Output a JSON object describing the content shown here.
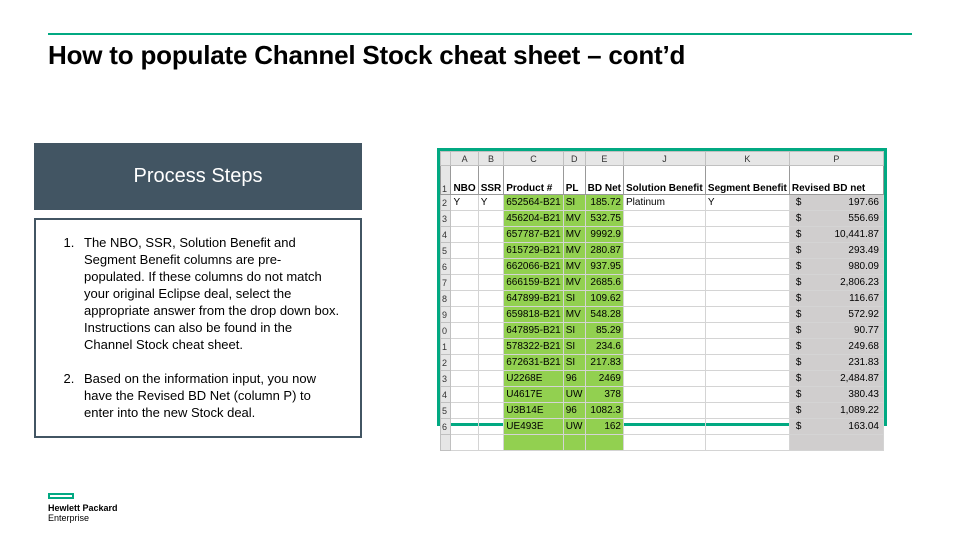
{
  "slide": {
    "title": "How to populate Channel Stock cheat sheet – cont’d",
    "accent_color": "#01a982",
    "panel_color": "#425563"
  },
  "process": {
    "header": "Process Steps",
    "steps": [
      "The NBO, SSR, Solution Benefit and Segment Benefit columns are pre-populated.  If these columns do not match your original Eclipse deal, select the appropriate answer from the drop down box.  Instructions can also be found in the Channel Stock cheat sheet.",
      "Based on the information input, you now have the Revised BD Net (column P) to enter into the new Stock deal."
    ]
  },
  "sheet": {
    "column_letters": [
      "A",
      "B",
      "C",
      "D",
      "E",
      "J",
      "K",
      "P"
    ],
    "headers": [
      "NBO",
      "SSR",
      "Product #",
      "PL",
      "BD Net",
      "Solution Benefit",
      "Segment Benefit",
      "Revised BD net"
    ],
    "row_numbers": [
      "1",
      "2",
      "3",
      "4",
      "5",
      "6",
      "7",
      "8",
      "9",
      "0",
      "1",
      "2",
      "3",
      "4",
      "5",
      "6",
      ""
    ],
    "currency_symbol": "$",
    "rows": [
      {
        "nbo": "Y",
        "ssr": "Y",
        "product": "652564-B21",
        "pl": "SI",
        "bdnet": "185.72",
        "solution": "Platinum",
        "segment": "Y",
        "revised": "197.66"
      },
      {
        "nbo": "",
        "ssr": "",
        "product": "456204-B21",
        "pl": "MV",
        "bdnet": "532.75",
        "solution": "",
        "segment": "",
        "revised": "556.69"
      },
      {
        "nbo": "",
        "ssr": "",
        "product": "657787-B21",
        "pl": "MV",
        "bdnet": "9992.9",
        "solution": "",
        "segment": "",
        "revised": "10,441.87"
      },
      {
        "nbo": "",
        "ssr": "",
        "product": "615729-B21",
        "pl": "MV",
        "bdnet": "280.87",
        "solution": "",
        "segment": "",
        "revised": "293.49"
      },
      {
        "nbo": "",
        "ssr": "",
        "product": "662066-B21",
        "pl": "MV",
        "bdnet": "937.95",
        "solution": "",
        "segment": "",
        "revised": "980.09"
      },
      {
        "nbo": "",
        "ssr": "",
        "product": "666159-B21",
        "pl": "MV",
        "bdnet": "2685.6",
        "solution": "",
        "segment": "",
        "revised": "2,806.23"
      },
      {
        "nbo": "",
        "ssr": "",
        "product": "647899-B21",
        "pl": "SI",
        "bdnet": "109.62",
        "solution": "",
        "segment": "",
        "revised": "116.67"
      },
      {
        "nbo": "",
        "ssr": "",
        "product": "659818-B21",
        "pl": "MV",
        "bdnet": "548.28",
        "solution": "",
        "segment": "",
        "revised": "572.92"
      },
      {
        "nbo": "",
        "ssr": "",
        "product": "647895-B21",
        "pl": "SI",
        "bdnet": "85.29",
        "solution": "",
        "segment": "",
        "revised": "90.77"
      },
      {
        "nbo": "",
        "ssr": "",
        "product": "578322-B21",
        "pl": "SI",
        "bdnet": "234.6",
        "solution": "",
        "segment": "",
        "revised": "249.68"
      },
      {
        "nbo": "",
        "ssr": "",
        "product": "672631-B21",
        "pl": "SI",
        "bdnet": "217.83",
        "solution": "",
        "segment": "",
        "revised": "231.83"
      },
      {
        "nbo": "",
        "ssr": "",
        "product": "U2268E",
        "pl": "96",
        "bdnet": "2469",
        "solution": "",
        "segment": "",
        "revised": "2,484.87"
      },
      {
        "nbo": "",
        "ssr": "",
        "product": "U4617E",
        "pl": "UW",
        "bdnet": "378",
        "solution": "",
        "segment": "",
        "revised": "380.43"
      },
      {
        "nbo": "",
        "ssr": "",
        "product": "U3B14E",
        "pl": "96",
        "bdnet": "1082.3",
        "solution": "",
        "segment": "",
        "revised": "1,089.22"
      },
      {
        "nbo": "",
        "ssr": "",
        "product": "UE493E",
        "pl": "UW",
        "bdnet": "162",
        "solution": "",
        "segment": "",
        "revised": "163.04"
      }
    ]
  },
  "logo": {
    "line1": "Hewlett Packard",
    "line2": "Enterprise"
  }
}
